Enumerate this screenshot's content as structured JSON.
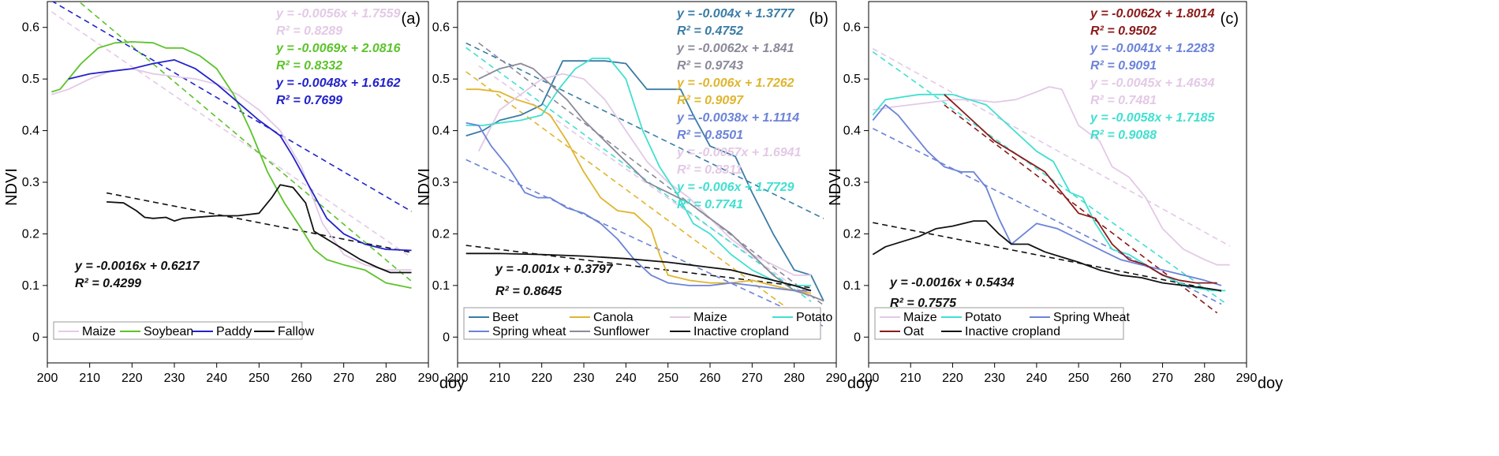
{
  "figure": {
    "x_label": "doy",
    "y_label": "NDVI"
  },
  "chart_data": [
    {
      "type": "line",
      "panel_label": "(a)",
      "xlabel": "doy",
      "ylabel": "NDVI",
      "xlim": [
        200,
        290
      ],
      "ylim": [
        -0.05,
        0.65
      ],
      "x_ticks": [
        200,
        210,
        220,
        230,
        240,
        250,
        260,
        270,
        280,
        290
      ],
      "y_ticks": [
        0,
        0.1,
        0.2,
        0.3,
        0.4,
        0.5,
        0.6
      ],
      "legend_position": "bottom",
      "series": [
        {
          "name": "Maize",
          "color": "#e3c9e6",
          "x": [
            201,
            205,
            210,
            215,
            220,
            225,
            230,
            235,
            240,
            245,
            250,
            255,
            260,
            265,
            270,
            275,
            280,
            286
          ],
          "y": [
            0.47,
            0.48,
            0.5,
            0.515,
            0.52,
            0.51,
            0.505,
            0.5,
            0.49,
            0.47,
            0.44,
            0.4,
            0.33,
            0.22,
            0.16,
            0.14,
            0.13,
            0.13
          ]
        },
        {
          "name": "Soybean",
          "color": "#5cc32a",
          "x": [
            201,
            203,
            208,
            212,
            216,
            220,
            225,
            228,
            232,
            236,
            240,
            244,
            248,
            252,
            256,
            260,
            263,
            266,
            270,
            275,
            280,
            286
          ],
          "y": [
            0.475,
            0.48,
            0.53,
            0.56,
            0.57,
            0.572,
            0.57,
            0.56,
            0.56,
            0.545,
            0.52,
            0.47,
            0.4,
            0.32,
            0.26,
            0.21,
            0.17,
            0.15,
            0.14,
            0.13,
            0.105,
            0.095
          ]
        },
        {
          "name": "Paddy",
          "color": "#2222cc",
          "x": [
            205,
            210,
            215,
            220,
            225,
            230,
            235,
            240,
            245,
            250,
            255,
            258,
            262,
            266,
            270,
            275,
            280,
            286
          ],
          "y": [
            0.5,
            0.51,
            0.515,
            0.52,
            0.53,
            0.537,
            0.52,
            0.49,
            0.455,
            0.42,
            0.39,
            0.35,
            0.29,
            0.23,
            0.2,
            0.18,
            0.17,
            0.168
          ]
        },
        {
          "name": "Fallow",
          "color": "#111111",
          "x": [
            214,
            218,
            221,
            223,
            225,
            228,
            230,
            232,
            235,
            240,
            245,
            250,
            253,
            255,
            258,
            261,
            263,
            266,
            270,
            274,
            278,
            281,
            286
          ],
          "y": [
            0.262,
            0.26,
            0.245,
            0.232,
            0.23,
            0.232,
            0.225,
            0.23,
            0.232,
            0.235,
            0.235,
            0.24,
            0.27,
            0.295,
            0.29,
            0.26,
            0.205,
            0.19,
            0.17,
            0.15,
            0.135,
            0.125,
            0.125
          ]
        }
      ],
      "trendlines": [
        {
          "series": "Maize",
          "color": "#e3c9e6",
          "slope": -0.0056,
          "intercept": 1.7559,
          "x_range": [
            201,
            286
          ],
          "equation": "y = -0.0056x + 1.7559",
          "r2": "R² = 0.8289"
        },
        {
          "series": "Soybean",
          "color": "#5cc32a",
          "slope": -0.0069,
          "intercept": 2.0816,
          "x_range": [
            201,
            286
          ],
          "equation": "y = -0.0069x + 2.0816",
          "r2": "R² = 0.8332"
        },
        {
          "series": "Paddy",
          "color": "#2222cc",
          "slope": -0.0048,
          "intercept": 1.6162,
          "x_range": [
            201,
            286
          ],
          "equation": "y = -0.0048x + 1.6162",
          "r2": "R² = 0.7699"
        },
        {
          "series": "Fallow",
          "color": "#111111",
          "slope": -0.0016,
          "intercept": 0.6217,
          "x_range": [
            214,
            286
          ],
          "equation": "y = -0.0016x + 0.6217",
          "r2": "R² = 0.4299"
        }
      ]
    },
    {
      "type": "line",
      "panel_label": "(b)",
      "xlabel": "doy",
      "ylabel": "NDVI",
      "xlim": [
        200,
        290
      ],
      "ylim": [
        -0.05,
        0.65
      ],
      "x_ticks": [
        200,
        210,
        220,
        230,
        240,
        250,
        260,
        270,
        280,
        290
      ],
      "y_ticks": [
        0,
        0.1,
        0.2,
        0.3,
        0.4,
        0.5,
        0.6
      ],
      "legend_position": "bottom",
      "series": [
        {
          "name": "Beet",
          "color": "#3a7ca5",
          "x": [
            202,
            206,
            210,
            215,
            220,
            225,
            230,
            235,
            240,
            245,
            250,
            253,
            256,
            260,
            263,
            266,
            270,
            275,
            280,
            284,
            287
          ],
          "y": [
            0.39,
            0.4,
            0.42,
            0.43,
            0.45,
            0.535,
            0.535,
            0.535,
            0.53,
            0.48,
            0.48,
            0.48,
            0.43,
            0.37,
            0.36,
            0.35,
            0.28,
            0.2,
            0.13,
            0.12,
            0.07
          ]
        },
        {
          "name": "Canola",
          "color": "#e0b52f",
          "x": [
            202,
            205,
            210,
            214,
            218,
            222,
            226,
            230,
            234,
            238,
            242,
            246,
            248,
            250,
            255,
            260,
            265,
            270,
            275,
            280,
            284
          ],
          "y": [
            0.48,
            0.48,
            0.475,
            0.46,
            0.45,
            0.43,
            0.38,
            0.32,
            0.27,
            0.245,
            0.24,
            0.21,
            0.16,
            0.12,
            0.11,
            0.105,
            0.105,
            0.11,
            0.1,
            0.09,
            0.085
          ]
        },
        {
          "name": "Maize",
          "color": "#e3c9e6",
          "x": [
            205,
            210,
            215,
            220,
            225,
            230,
            235,
            240,
            245,
            250,
            255,
            260,
            265,
            270,
            275,
            280,
            284
          ],
          "y": [
            0.36,
            0.44,
            0.47,
            0.5,
            0.51,
            0.5,
            0.46,
            0.4,
            0.34,
            0.3,
            0.27,
            0.23,
            0.19,
            0.16,
            0.14,
            0.12,
            0.12
          ]
        },
        {
          "name": "Potato",
          "color": "#40e0d0",
          "x": [
            202,
            206,
            210,
            215,
            220,
            224,
            228,
            232,
            236,
            240,
            244,
            248,
            252,
            256,
            260,
            265,
            270,
            275,
            280,
            284
          ],
          "y": [
            0.41,
            0.41,
            0.415,
            0.42,
            0.43,
            0.48,
            0.52,
            0.54,
            0.54,
            0.5,
            0.4,
            0.33,
            0.28,
            0.22,
            0.2,
            0.16,
            0.13,
            0.11,
            0.1,
            0.1
          ]
        },
        {
          "name": "Spring wheat",
          "color": "#6c83d8",
          "x": [
            202,
            205,
            208,
            212,
            216,
            219,
            222,
            226,
            230,
            234,
            238,
            242,
            246,
            250,
            255,
            260,
            265,
            270,
            275,
            280,
            284
          ],
          "y": [
            0.415,
            0.41,
            0.37,
            0.33,
            0.28,
            0.27,
            0.27,
            0.25,
            0.24,
            0.22,
            0.19,
            0.15,
            0.12,
            0.105,
            0.1,
            0.1,
            0.105,
            0.1,
            0.095,
            0.09,
            0.09
          ]
        },
        {
          "name": "Sunflower",
          "color": "#8a8a9a",
          "x": [
            205,
            210,
            215,
            218,
            222,
            226,
            230,
            235,
            240,
            245,
            250,
            255,
            260,
            265,
            270,
            275,
            280,
            284,
            287
          ],
          "y": [
            0.5,
            0.52,
            0.53,
            0.52,
            0.49,
            0.46,
            0.42,
            0.38,
            0.34,
            0.3,
            0.28,
            0.26,
            0.23,
            0.2,
            0.16,
            0.12,
            0.09,
            0.08,
            0.07
          ]
        },
        {
          "name": "Inactive cropland",
          "color": "#111111",
          "x": [
            202,
            210,
            220,
            230,
            240,
            250,
            255,
            260,
            265,
            270,
            275,
            280,
            284
          ],
          "y": [
            0.162,
            0.162,
            0.16,
            0.157,
            0.152,
            0.145,
            0.14,
            0.135,
            0.13,
            0.12,
            0.11,
            0.1,
            0.09
          ]
        }
      ],
      "trendlines": [
        {
          "series": "Beet",
          "color": "#3a7ca5",
          "slope": -0.004,
          "intercept": 1.3777,
          "x_range": [
            202,
            287
          ],
          "equation": "y = -0.004x + 1.3777",
          "r2": "R² = 0.4752"
        },
        {
          "series": "Sunflower",
          "color": "#8a8a9a",
          "slope": -0.0062,
          "intercept": 1.841,
          "x_range": [
            205,
            287
          ],
          "equation": "y = -0.0062x + 1.841",
          "r2": "R² = 0.9743"
        },
        {
          "series": "Canola",
          "color": "#e0b52f",
          "slope": -0.006,
          "intercept": 1.7262,
          "x_range": [
            202,
            284
          ],
          "equation": "y = -0.006x + 1.7262",
          "r2": "R² = 0.9097"
        },
        {
          "series": "Spring wheat",
          "color": "#6c83d8",
          "slope": -0.0038,
          "intercept": 1.1114,
          "x_range": [
            202,
            287
          ],
          "equation": "y = -0.0038x + 1.1114",
          "r2": "R² = 0.8501"
        },
        {
          "series": "Maize",
          "color": "#e3c9e6",
          "slope": -0.0057,
          "intercept": 1.6941,
          "x_range": [
            205,
            284
          ],
          "equation": "y = -0.0057x + 1.6941",
          "r2": "R² = 0.8311"
        },
        {
          "series": "Potato",
          "color": "#40e0d0",
          "slope": -0.006,
          "intercept": 1.7729,
          "x_range": [
            202,
            284
          ],
          "equation": "y = -0.006x + 1.7729",
          "r2": "R² = 0.7741"
        },
        {
          "series": "Inactive cropland",
          "color": "#111111",
          "slope": -0.001,
          "intercept": 0.3797,
          "x_range": [
            202,
            284
          ],
          "equation": "y = -0.001x + 0.3797",
          "r2": "R² = 0.8645"
        }
      ]
    },
    {
      "type": "line",
      "panel_label": "(c)",
      "xlabel": "doy",
      "ylabel": "NDVI",
      "xlim": [
        200,
        290
      ],
      "ylim": [
        -0.05,
        0.65
      ],
      "x_ticks": [
        200,
        210,
        220,
        230,
        240,
        250,
        260,
        270,
        280,
        290
      ],
      "y_ticks": [
        0,
        0.1,
        0.2,
        0.3,
        0.4,
        0.5,
        0.6
      ],
      "legend_position": "bottom",
      "series": [
        {
          "name": "Maize",
          "color": "#e3c9e6",
          "x": [
            201,
            205,
            210,
            215,
            220,
            225,
            230,
            235,
            240,
            243,
            246,
            250,
            255,
            258,
            262,
            266,
            270,
            275,
            280,
            283,
            286
          ],
          "y": [
            0.44,
            0.445,
            0.45,
            0.455,
            0.46,
            0.46,
            0.455,
            0.46,
            0.475,
            0.485,
            0.48,
            0.41,
            0.38,
            0.33,
            0.31,
            0.27,
            0.21,
            0.17,
            0.15,
            0.14,
            0.14
          ]
        },
        {
          "name": "Potato",
          "color": "#40e0d0",
          "x": [
            201,
            204,
            208,
            212,
            216,
            220,
            224,
            228,
            232,
            236,
            240,
            244,
            248,
            251,
            254,
            258,
            262,
            266,
            270,
            274,
            278,
            282,
            285
          ],
          "y": [
            0.43,
            0.46,
            0.465,
            0.47,
            0.47,
            0.47,
            0.46,
            0.45,
            0.42,
            0.39,
            0.36,
            0.34,
            0.28,
            0.27,
            0.22,
            0.17,
            0.16,
            0.14,
            0.12,
            0.105,
            0.095,
            0.09,
            0.09
          ]
        },
        {
          "name": "Spring Wheat",
          "color": "#6c83d8",
          "x": [
            201,
            204,
            207,
            210,
            214,
            218,
            222,
            225,
            228,
            231,
            234,
            237,
            240,
            245,
            250,
            255,
            260,
            265,
            270,
            275,
            280,
            284
          ],
          "y": [
            0.42,
            0.45,
            0.43,
            0.4,
            0.36,
            0.33,
            0.32,
            0.32,
            0.29,
            0.23,
            0.18,
            0.2,
            0.22,
            0.21,
            0.19,
            0.17,
            0.15,
            0.14,
            0.13,
            0.12,
            0.11,
            0.1
          ]
        },
        {
          "name": "Oat",
          "color": "#8b1a1a",
          "x": [
            218,
            222,
            226,
            230,
            234,
            238,
            242,
            246,
            250,
            254,
            258,
            262,
            266,
            270,
            274,
            278,
            283
          ],
          "y": [
            0.47,
            0.44,
            0.41,
            0.38,
            0.36,
            0.34,
            0.32,
            0.28,
            0.24,
            0.23,
            0.18,
            0.15,
            0.14,
            0.12,
            0.11,
            0.105,
            0.105
          ]
        },
        {
          "name": "Inactive cropland",
          "color": "#111111",
          "x": [
            201,
            204,
            208,
            212,
            216,
            220,
            225,
            228,
            231,
            234,
            238,
            242,
            246,
            250,
            255,
            260,
            265,
            270,
            275,
            280,
            284
          ],
          "y": [
            0.16,
            0.175,
            0.185,
            0.195,
            0.21,
            0.215,
            0.225,
            0.225,
            0.2,
            0.18,
            0.18,
            0.165,
            0.155,
            0.145,
            0.13,
            0.12,
            0.115,
            0.105,
            0.1,
            0.095,
            0.09
          ]
        }
      ],
      "trendlines": [
        {
          "series": "Oat",
          "color": "#8b1a1a",
          "slope": -0.0062,
          "intercept": 1.8014,
          "x_range": [
            218,
            283
          ],
          "equation": "y = -0.0062x + 1.8014",
          "r2": "R² = 0.9502"
        },
        {
          "series": "Spring Wheat",
          "color": "#6c83d8",
          "slope": -0.0041,
          "intercept": 1.2283,
          "x_range": [
            201,
            284
          ],
          "equation": "y = -0.0041x + 1.2283",
          "r2": "R² = 0.9091"
        },
        {
          "series": "Maize",
          "color": "#e3c9e6",
          "slope": -0.0045,
          "intercept": 1.4634,
          "x_range": [
            201,
            286
          ],
          "equation": "y = -0.0045x + 1.4634",
          "r2": "R² = 0.7481"
        },
        {
          "series": "Potato",
          "color": "#40e0d0",
          "slope": -0.0058,
          "intercept": 1.7185,
          "x_range": [
            201,
            285
          ],
          "equation": "y = -0.0058x + 1.7185",
          "r2": "R² = 0.9088"
        },
        {
          "series": "Inactive cropland",
          "color": "#111111",
          "slope": -0.0016,
          "intercept": 0.5434,
          "x_range": [
            201,
            284
          ],
          "equation": "y = -0.0016x + 0.5434",
          "r2": "R² = 0.7575"
        }
      ]
    }
  ]
}
